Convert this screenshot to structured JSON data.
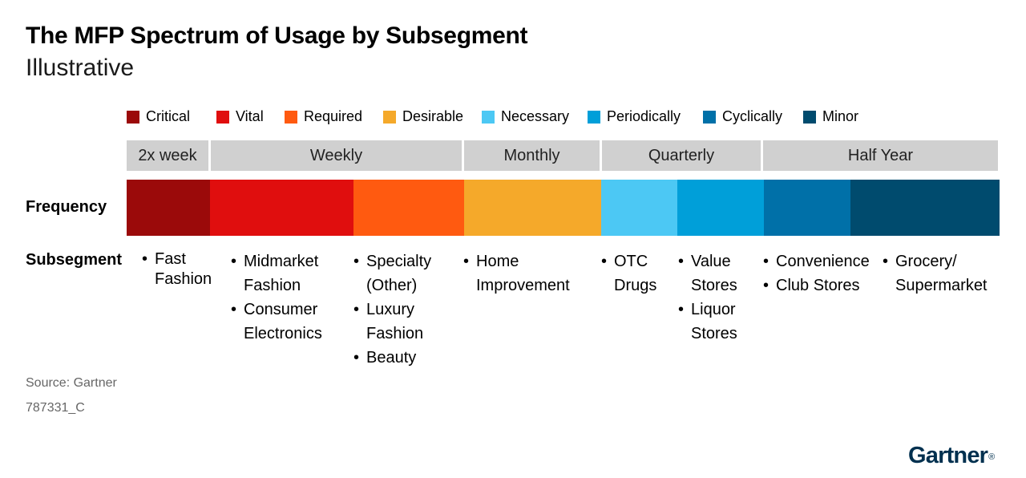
{
  "title": "The MFP Spectrum of Usage by Subsegment",
  "subtitle": "Illustrative",
  "legend": [
    {
      "label": "Critical",
      "color": "#9b0a0a"
    },
    {
      "label": "Vital",
      "color": "#e00e0e"
    },
    {
      "label": "Required",
      "color": "#ff5a10"
    },
    {
      "label": "Desirable",
      "color": "#f5a92a"
    },
    {
      "label": "Necessary",
      "color": "#4cc8f4"
    },
    {
      "label": "Periodically",
      "color": "#009fd9"
    },
    {
      "label": "Cyclically",
      "color": "#0070a8"
    },
    {
      "label": "Minor",
      "color": "#004b6e"
    }
  ],
  "frequency_headers": [
    "2x week",
    "Weekly",
    "Monthly",
    "Quarterly",
    "Half Year"
  ],
  "row_labels": {
    "frequency": "Frequency",
    "subsegment": "Subsegment"
  },
  "subsegments": [
    {
      "level": "Critical",
      "items": [
        "Fast Fashion"
      ]
    },
    {
      "level": "Vital",
      "items": [
        "Midmarket Fashion",
        "Consumer Electronics"
      ]
    },
    {
      "level": "Required",
      "items": [
        "Specialty (Other)",
        "Luxury Fashion",
        "Beauty"
      ]
    },
    {
      "level": "Desirable",
      "items": [
        "Home Improvement"
      ]
    },
    {
      "level": "Necessary",
      "items": [
        "OTC Drugs"
      ]
    },
    {
      "level": "Periodically",
      "items": [
        "Value Stores",
        "Liquor Stores"
      ]
    },
    {
      "level": "Cyclically",
      "items": [
        "Convenience",
        "Club Stores"
      ]
    },
    {
      "level": "Minor",
      "items": [
        "Grocery/ Supermarket"
      ]
    }
  ],
  "footer": {
    "source": "Source: Gartner",
    "doc_id": "787331_C",
    "logo": "Gartner",
    "logo_mark": "®"
  }
}
